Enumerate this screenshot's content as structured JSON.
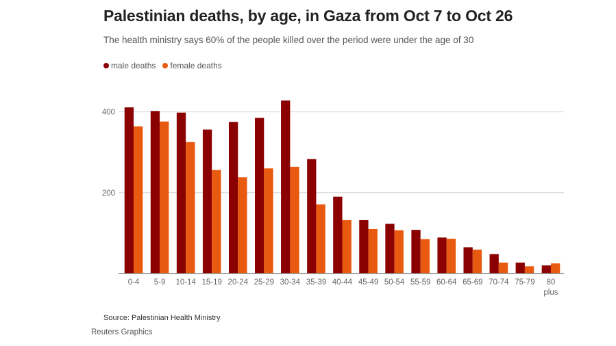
{
  "colors": {
    "male": "#8b0000",
    "female": "#e85a0f",
    "grid": "#dcdcdc",
    "axis": "#888888",
    "tick_text": "#666666"
  },
  "chart_data": {
    "type": "bar",
    "title": "Palestinian deaths, by age, in Gaza from Oct 7 to Oct 26",
    "subtitle": "The health ministry says 60% of the people killed over the period were under the age of 30",
    "xlabel": "",
    "ylabel": "",
    "ylim": [
      0,
      440
    ],
    "yticks": [
      200,
      400
    ],
    "grid": true,
    "legend_position": "top-left",
    "categories": [
      "0-4",
      "5-9",
      "10-14",
      "15-19",
      "20-24",
      "25-29",
      "30-34",
      "35-39",
      "40-44",
      "45-49",
      "50-54",
      "55-59",
      "60-64",
      "65-69",
      "70-74",
      "75-79",
      "80 plus"
    ],
    "series": [
      {
        "name": "male deaths",
        "color_key": "male",
        "values": [
          411,
          402,
          398,
          356,
          375,
          385,
          428,
          283,
          190,
          132,
          123,
          108,
          89,
          65,
          48,
          27,
          20
        ]
      },
      {
        "name": "female deaths",
        "color_key": "female",
        "values": [
          364,
          376,
          325,
          256,
          238,
          260,
          264,
          171,
          132,
          110,
          107,
          85,
          86,
          59,
          27,
          18,
          25
        ]
      }
    ]
  },
  "footer": {
    "source": "Source: Palestinian Health Ministry",
    "credit": "Reuters Graphics"
  }
}
